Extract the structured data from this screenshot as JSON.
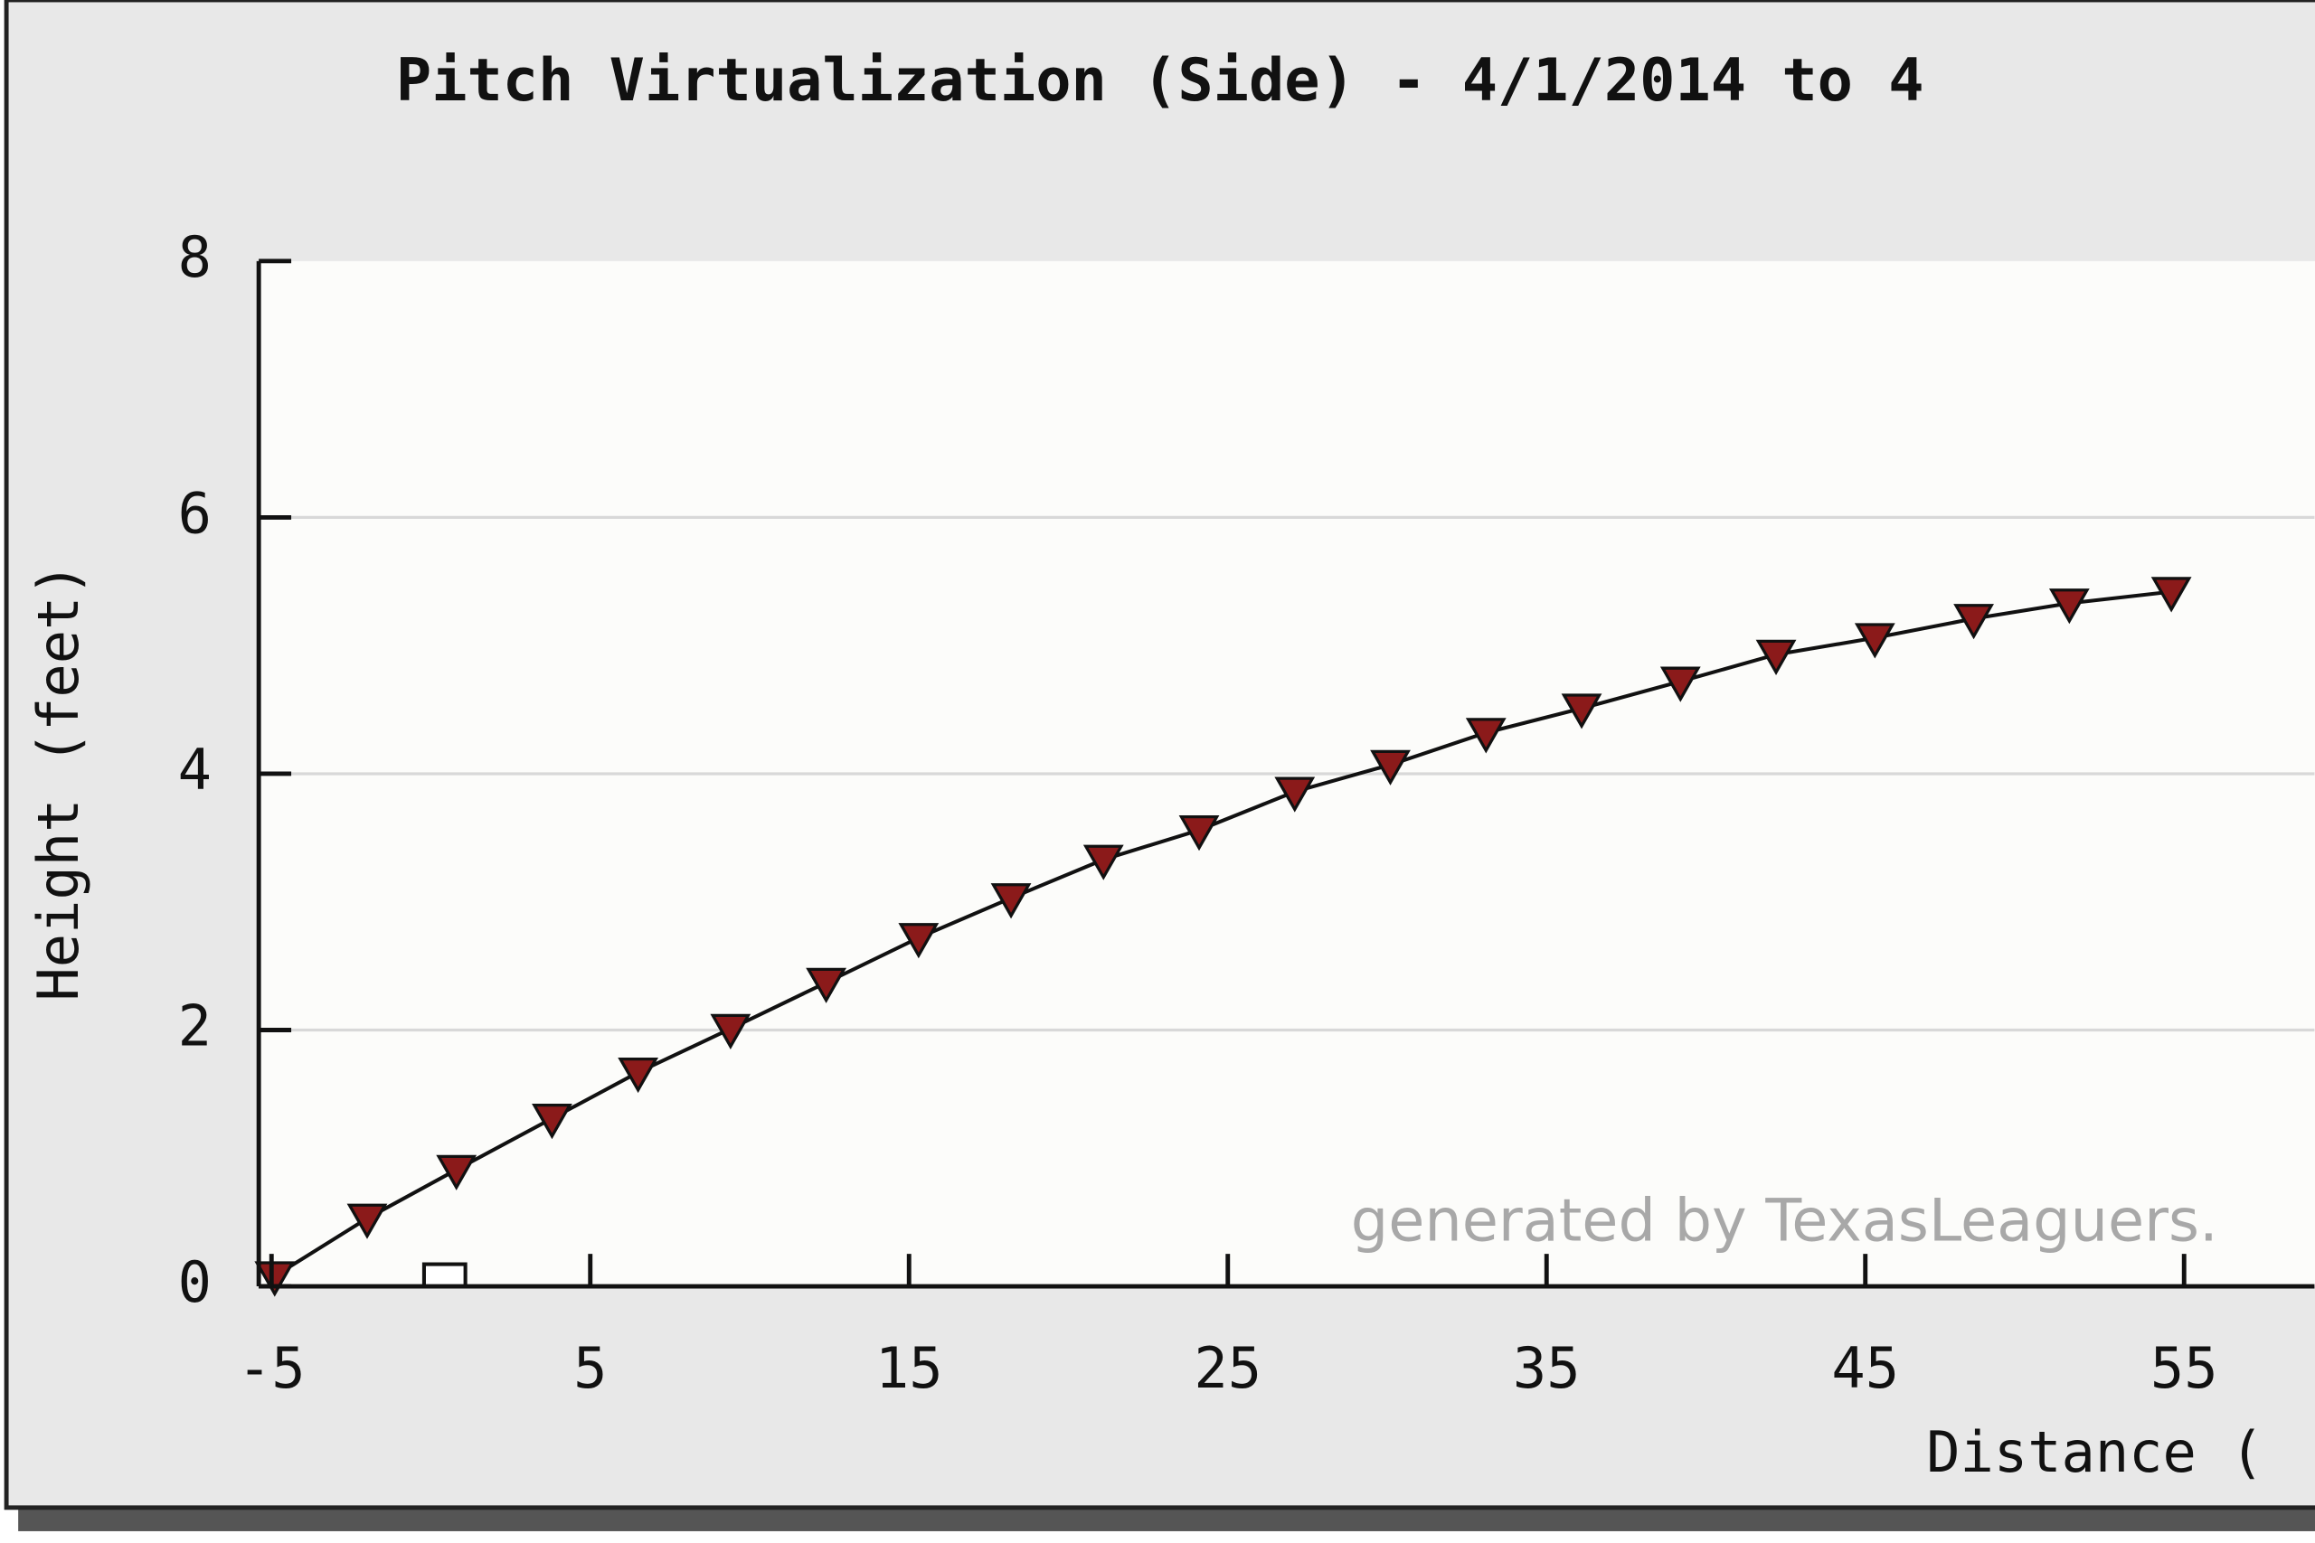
{
  "chart_data": {
    "type": "line",
    "title": "Pitch Virtualization (Side) - 4/1/2014 to 4",
    "x_label": "Distance (",
    "y_label": "Height (feet)",
    "annotation": "generated by TexasLeaguers.",
    "x": [
      -4.9,
      -2.0,
      0.8,
      3.8,
      6.5,
      9.4,
      12.4,
      15.3,
      18.2,
      21.1,
      24.1,
      27.1,
      30.1,
      33.1,
      36.1,
      39.2,
      42.2,
      45.3,
      48.4,
      51.4,
      54.6
    ],
    "series": [
      {
        "color": "#8b1a1a",
        "values": [
          0.08,
          0.53,
          0.91,
          1.31,
          1.67,
          2.01,
          2.37,
          2.72,
          3.03,
          3.33,
          3.56,
          3.86,
          4.07,
          4.32,
          4.51,
          4.72,
          4.93,
          5.06,
          5.21,
          5.33,
          5.42
        ]
      }
    ],
    "xlim": [
      -5.4,
      59.4
    ],
    "xticks": [
      -5,
      5,
      15,
      25,
      35,
      45,
      55
    ],
    "ylim": [
      0,
      8
    ],
    "yticks": [
      0,
      2,
      4,
      6,
      8
    ],
    "grid": true
  }
}
